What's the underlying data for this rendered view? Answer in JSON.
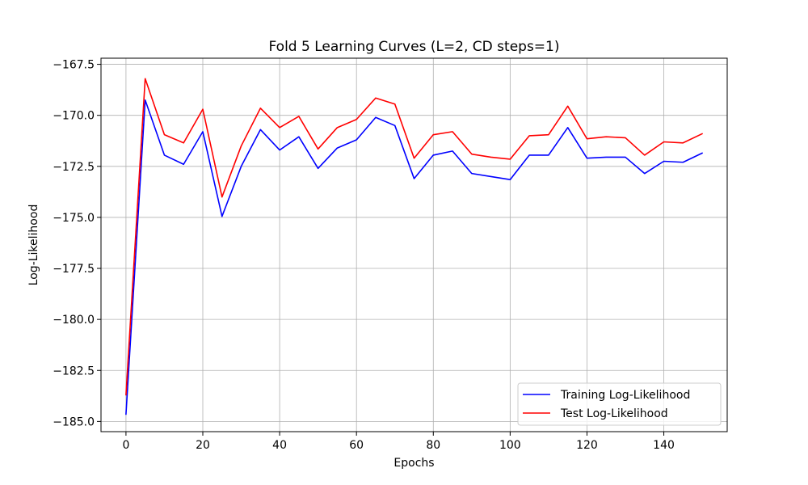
{
  "chart_data": {
    "type": "line",
    "title": "Fold 5 Learning Curves (L=2, CD steps=1)",
    "xlabel": "Epochs",
    "ylabel": "Log-Likelihood",
    "xlim": [
      -6.5,
      156.5
    ],
    "ylim": [
      -185.5,
      -167.2
    ],
    "x_ticks": [
      0,
      20,
      40,
      60,
      80,
      100,
      120,
      140
    ],
    "x_tick_labels": [
      "0",
      "20",
      "40",
      "60",
      "80",
      "100",
      "120",
      "140"
    ],
    "y_ticks": [
      -185.0,
      -182.5,
      -180.0,
      -177.5,
      -175.0,
      -172.5,
      -170.0,
      -167.5
    ],
    "y_tick_labels": [
      "−185.0",
      "−182.5",
      "−180.0",
      "−177.5",
      "−175.0",
      "−172.5",
      "−170.0",
      "−167.5"
    ],
    "grid": true,
    "legend_position": "lower-right",
    "x": [
      0,
      5,
      10,
      15,
      20,
      25,
      30,
      35,
      40,
      45,
      50,
      55,
      60,
      65,
      70,
      75,
      80,
      85,
      90,
      95,
      100,
      105,
      110,
      115,
      120,
      125,
      130,
      135,
      140,
      145,
      150
    ],
    "series": [
      {
        "name": "Training Log-Likelihood",
        "color": "#0000ff",
        "values": [
          -184.65,
          -169.25,
          -171.95,
          -172.4,
          -170.8,
          -174.95,
          -172.5,
          -170.7,
          -171.7,
          -171.05,
          -172.6,
          -171.6,
          -171.2,
          -170.1,
          -170.5,
          -173.1,
          -171.95,
          -171.75,
          -172.85,
          -173.0,
          -173.15,
          -171.95,
          -171.95,
          -170.6,
          -172.1,
          -172.05,
          -172.05,
          -172.85,
          -172.25,
          -172.3,
          -171.85
        ]
      },
      {
        "name": "Test Log-Likelihood",
        "color": "#ff0000",
        "values": [
          -183.7,
          -168.2,
          -170.95,
          -171.35,
          -169.7,
          -174.0,
          -171.5,
          -169.65,
          -170.6,
          -170.05,
          -171.65,
          -170.6,
          -170.2,
          -169.15,
          -169.45,
          -172.1,
          -170.95,
          -170.8,
          -171.9,
          -172.05,
          -172.15,
          -171.0,
          -170.95,
          -169.55,
          -171.15,
          -171.05,
          -171.1,
          -171.95,
          -171.3,
          -171.35,
          -170.9
        ]
      }
    ]
  }
}
